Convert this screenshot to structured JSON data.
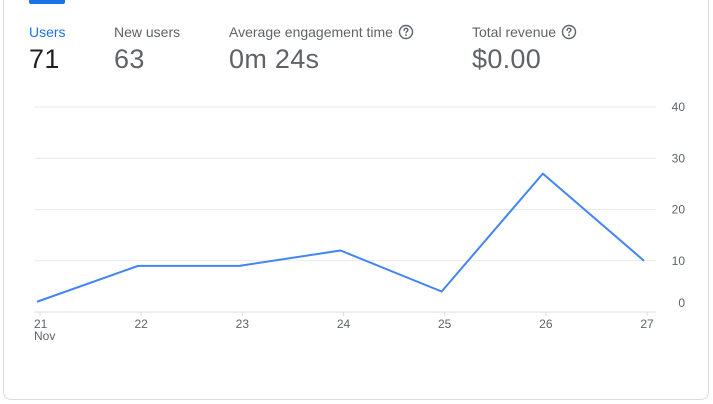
{
  "metrics": [
    {
      "label": "Users",
      "value": "71",
      "active": true,
      "help": false
    },
    {
      "label": "New users",
      "value": "63",
      "active": false,
      "help": false
    },
    {
      "label": "Average engagement time",
      "value": "0m 24s",
      "active": false,
      "help": true
    },
    {
      "label": "Total revenue",
      "value": "$0.00",
      "active": false,
      "help": true
    }
  ],
  "colors": {
    "accent": "#1a73e8",
    "line": "#4285f4",
    "grid": "#e8eaed"
  },
  "chart_data": {
    "type": "line",
    "x": [
      "21",
      "22",
      "23",
      "24",
      "25",
      "26",
      "27"
    ],
    "x_sublabel": "Nov",
    "series": [
      {
        "values": [
          2,
          9,
          9,
          12,
          4,
          27,
          10
        ]
      }
    ],
    "y_ticks": [
      "0",
      "10",
      "20",
      "30",
      "40"
    ],
    "ylim": [
      0,
      40
    ],
    "grid": true,
    "y_axis_side": "right"
  }
}
